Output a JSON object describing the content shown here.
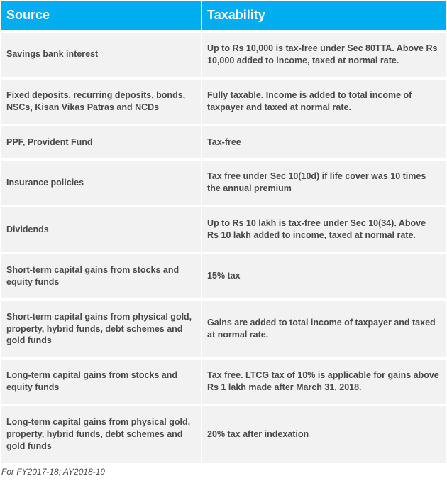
{
  "header_bg": "#00aeef",
  "header_text_color": "#ffffff",
  "row_bg": "#f2f2f2",
  "cell_text_color": "#4a4a4a",
  "columns": [
    "Source",
    "Taxability"
  ],
  "rows": [
    {
      "source": "Savings bank interest",
      "taxability": "Up to Rs 10,000 is tax-free under Sec 80TTA. Above Rs 10,000 added to income, taxed at normal rate."
    },
    {
      "source": "Fixed deposits, recurring deposits, bonds, NSCs, Kisan Vikas Patras and NCDs",
      "taxability": "Fully taxable. Income is added to total income of taxpayer and taxed at normal rate."
    },
    {
      "source": "PPF, Provident Fund",
      "taxability": "Tax-free"
    },
    {
      "source": "Insurance policies",
      "taxability": "Tax free under Sec 10(10d) if life cover was 10 times the annual premium"
    },
    {
      "source": "Dividends",
      "taxability": "Up to Rs 10 lakh is tax-free under Sec 10(34). Above Rs 10 lakh added to income, taxed at normal rate."
    },
    {
      "source": "Short-term capital gains from stocks and equity funds",
      "taxability": "15% tax"
    },
    {
      "source": "Short-term capital gains from physical gold, property, hybrid funds, debt schemes and gold funds",
      "taxability": "Gains are added to total income of taxpayer and taxed at normal rate."
    },
    {
      "source": "Long-term capital gains from stocks and equity funds",
      "taxability": "Tax free. LTCG tax of 10% is applicable for gains above Rs 1 lakh made after March 31, 2018."
    },
    {
      "source": "Long-term capital gains from physical gold, property, hybrid funds, debt schemes and gold funds",
      "taxability": "20% tax after indexation"
    }
  ],
  "footer": "For FY2017-18; AY2018-19"
}
